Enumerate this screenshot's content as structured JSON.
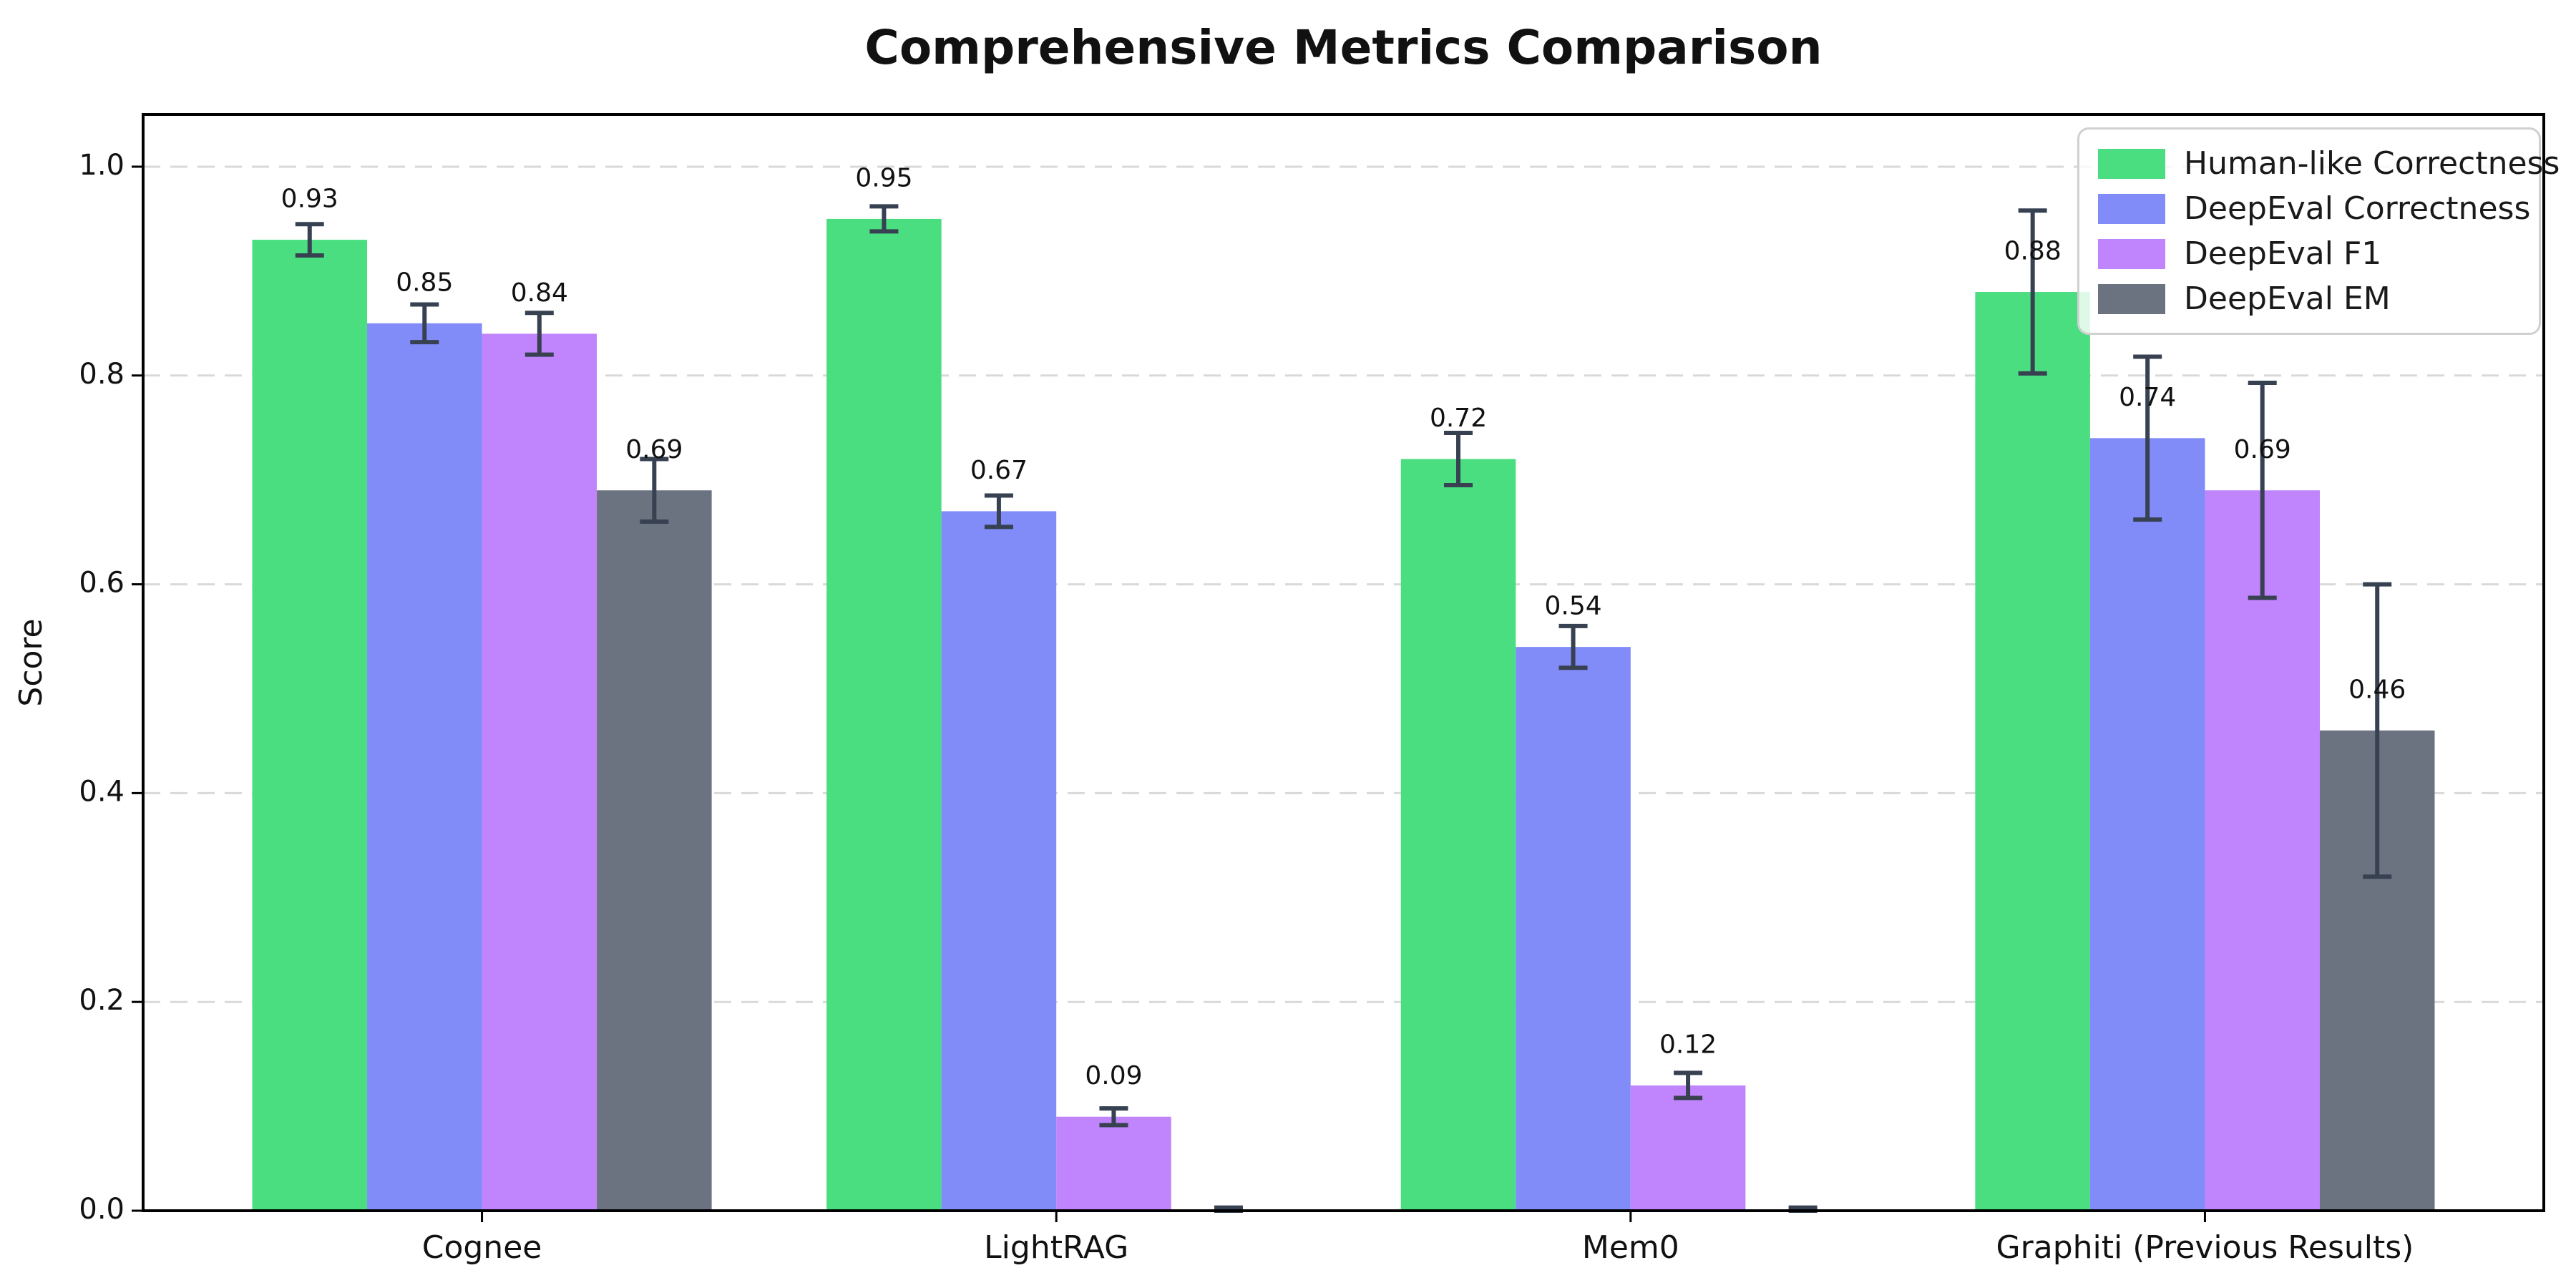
{
  "chart_data": {
    "type": "bar",
    "title": "Comprehensive Metrics Comparison",
    "ylabel": "Score",
    "xlabel": "",
    "categories": [
      "Cognee",
      "LightRAG",
      "Mem0",
      "Graphiti (Previous Results)"
    ],
    "series": [
      {
        "name": "Human-like Correctness",
        "color": "#4ade80",
        "values": [
          0.93,
          0.95,
          0.72,
          0.88
        ],
        "errors": [
          0.015,
          0.012,
          0.025,
          0.078
        ],
        "labels": [
          "0.93",
          "0.95",
          "0.72",
          "0.88"
        ]
      },
      {
        "name": "DeepEval Correctness",
        "color": "#818cf8",
        "values": [
          0.85,
          0.67,
          0.54,
          0.74
        ],
        "errors": [
          0.018,
          0.015,
          0.02,
          0.078
        ],
        "labels": [
          "0.85",
          "0.67",
          "0.54",
          "0.74"
        ]
      },
      {
        "name": "DeepEval F1",
        "color": "#c084fc",
        "values": [
          0.84,
          0.09,
          0.12,
          0.69
        ],
        "errors": [
          0.02,
          0.008,
          0.012,
          0.103
        ],
        "labels": [
          "0.84",
          "0.09",
          "0.12",
          "0.69"
        ]
      },
      {
        "name": "DeepEval EM",
        "color": "#6b7280",
        "values": [
          0.69,
          0.0,
          0.0,
          0.46
        ],
        "errors": [
          0.03,
          0.003,
          0.003,
          0.14
        ],
        "labels": [
          "0.69",
          null,
          null,
          "0.46"
        ]
      }
    ],
    "yticks": [
      "0.0",
      "0.2",
      "0.4",
      "0.6",
      "0.8",
      "1.0"
    ],
    "ytick_values": [
      0.0,
      0.2,
      0.4,
      0.6,
      0.8,
      1.0
    ],
    "ylim": [
      0,
      1.05
    ],
    "grid": {
      "axis": "y",
      "style": "dashed",
      "color": "#d9d9d9"
    },
    "error_bar_color": "#374151",
    "legend_position": "upper right",
    "bar_label_rule": "labels hidden for zero-height bars"
  }
}
